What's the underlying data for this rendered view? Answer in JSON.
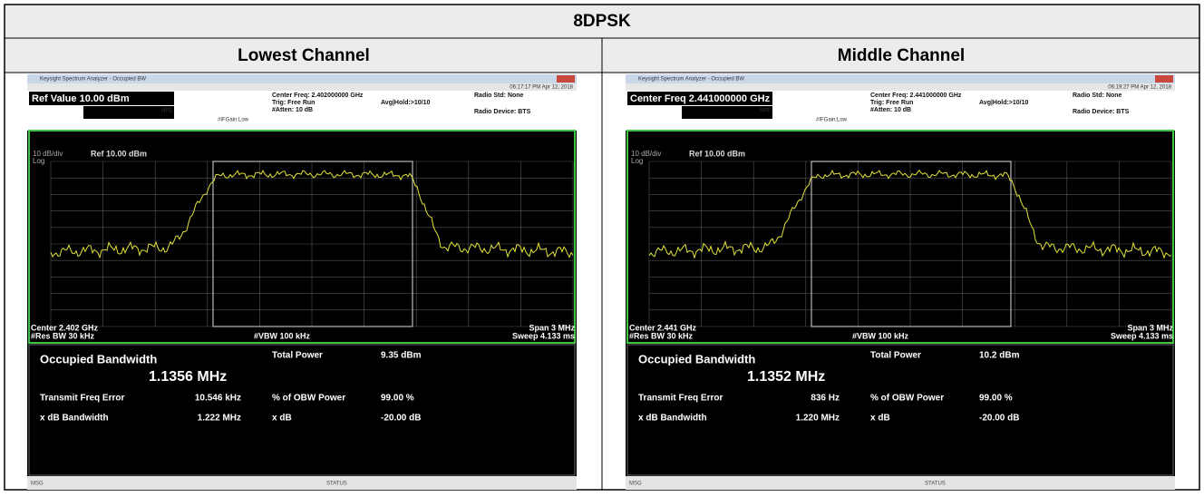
{
  "header": {
    "title": "8DPSK"
  },
  "panels": [
    {
      "heading": "Lowest Channel",
      "window_title": "Keysight Spectrum Analyzer - Occupied BW",
      "timestamp": "06:17:17 PM Apr 12, 2018",
      "active_field": "Ref Value 10.00 dBm",
      "nfe": "NFE",
      "if_gain": "#IFGain:Low",
      "center_freq": "Center Freq: 2.402000000 GHz",
      "trig": "Trig: Free Run",
      "avg_hold": "Avg|Hold:>10/10",
      "atten": "#Atten: 10 dB",
      "radio_std": "Radio Std: None",
      "radio_device": "Radio Device: BTS",
      "scale": "10 dB/div",
      "ref": "Ref 10.00 dBm",
      "log": "Log",
      "center": "Center 2.402 GHz",
      "res_bw": "#Res BW 30 kHz",
      "vbw": "#VBW 100 kHz",
      "span": "Span 3 MHz",
      "sweep": "Sweep 4.133 ms",
      "obw_label": "Occupied Bandwidth",
      "obw_value": "1.1356 MHz",
      "total_power_label": "Total Power",
      "total_power": "9.35 dBm",
      "tfe_label": "Transmit Freq Error",
      "tfe": "10.546 kHz",
      "pct_label": "% of OBW Power",
      "pct": "99.00 %",
      "xdb_bw_label": "x dB Bandwidth",
      "xdb_bw": "1.222 MHz",
      "xdb_label": "x dB",
      "xdb": "-20.00 dB",
      "msg": "MSG",
      "status": "STATUS"
    },
    {
      "heading": "Middle Channel",
      "window_title": "Keysight Spectrum Analyzer - Occupied BW",
      "timestamp": "06:19:27 PM Apr 12, 2018",
      "active_field": "Center Freq 2.441000000 GHz",
      "nfe": "NFE",
      "if_gain": "#IFGain:Low",
      "center_freq": "Center Freq: 2.441000000 GHz",
      "trig": "Trig: Free Run",
      "avg_hold": "Avg|Hold:>10/10",
      "atten": "#Atten: 10 dB",
      "radio_std": "Radio Std: None",
      "radio_device": "Radio Device: BTS",
      "scale": "10 dB/div",
      "ref": "Ref 10.00 dBm",
      "log": "Log",
      "center": "Center 2.441 GHz",
      "res_bw": "#Res BW 30 kHz",
      "vbw": "#VBW 100 kHz",
      "span": "Span 3 MHz",
      "sweep": "Sweep 4.133 ms",
      "obw_label": "Occupied Bandwidth",
      "obw_value": "1.1352 MHz",
      "total_power_label": "Total Power",
      "total_power": "10.2 dBm",
      "tfe_label": "Transmit Freq Error",
      "tfe": "836 Hz",
      "pct_label": "% of OBW Power",
      "pct": "99.00 %",
      "xdb_bw_label": "x dB Bandwidth",
      "xdb_bw": "1.220 MHz",
      "xdb_label": "x dB",
      "xdb": "-20.00 dB",
      "msg": "MSG",
      "status": "STATUS"
    }
  ]
}
